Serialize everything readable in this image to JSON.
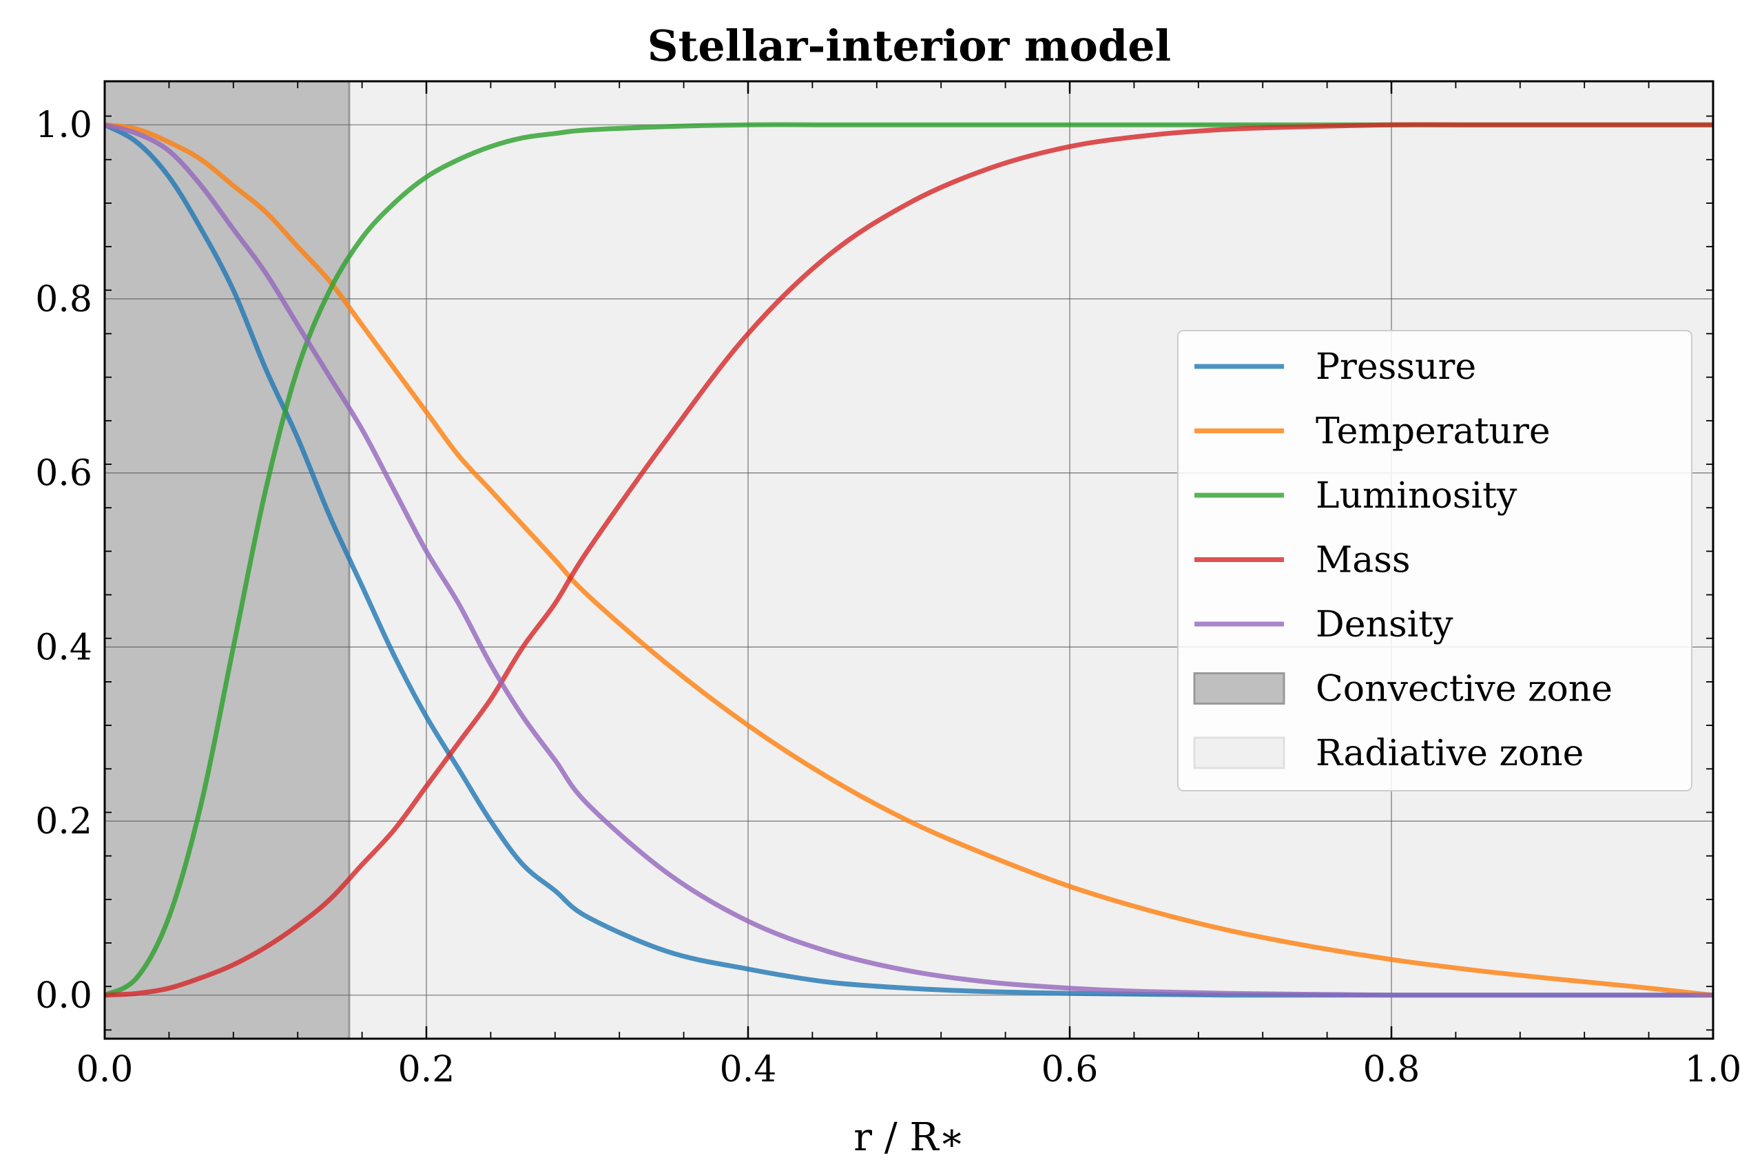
{
  "chart_data": {
    "type": "line",
    "title": "Stellar-interior model",
    "xlabel": "r / R∗",
    "ylabel": "",
    "xlim": [
      0.0,
      1.0
    ],
    "ylim": [
      -0.05,
      1.05
    ],
    "xticks": [
      "0.0",
      "0.2",
      "0.4",
      "0.6",
      "0.8",
      "1.0"
    ],
    "yticks": [
      "0.0",
      "0.2",
      "0.4",
      "0.6",
      "0.8",
      "1.0"
    ],
    "grid": true,
    "legend_position": "center-right",
    "x": [
      0.0,
      0.02,
      0.04,
      0.06,
      0.08,
      0.1,
      0.12,
      0.14,
      0.16,
      0.18,
      0.2,
      0.22,
      0.24,
      0.26,
      0.28,
      0.3,
      0.35,
      0.4,
      0.45,
      0.5,
      0.55,
      0.6,
      0.65,
      0.7,
      0.75,
      0.8,
      0.85,
      0.9,
      0.95,
      1.0
    ],
    "series": [
      {
        "name": "Pressure",
        "color": "#1f77b4",
        "values": [
          1.0,
          0.98,
          0.94,
          0.88,
          0.81,
          0.72,
          0.64,
          0.55,
          0.47,
          0.39,
          0.32,
          0.26,
          0.2,
          0.15,
          0.12,
          0.09,
          0.05,
          0.03,
          0.015,
          0.008,
          0.004,
          0.002,
          0.001,
          0.0,
          0.0,
          0.0,
          0.0,
          0.0,
          0.0,
          0.0
        ]
      },
      {
        "name": "Temperature",
        "color": "#ff7f0e",
        "values": [
          1.0,
          0.995,
          0.98,
          0.96,
          0.93,
          0.9,
          0.86,
          0.82,
          0.77,
          0.72,
          0.67,
          0.62,
          0.58,
          0.54,
          0.5,
          0.46,
          0.38,
          0.31,
          0.25,
          0.2,
          0.16,
          0.125,
          0.097,
          0.074,
          0.056,
          0.041,
          0.029,
          0.019,
          0.01,
          0.0
        ]
      },
      {
        "name": "Luminosity",
        "color": "#2ca02c",
        "values": [
          0.0,
          0.02,
          0.09,
          0.22,
          0.4,
          0.58,
          0.72,
          0.81,
          0.87,
          0.91,
          0.94,
          0.96,
          0.975,
          0.985,
          0.99,
          0.994,
          0.998,
          1.0,
          1.0,
          1.0,
          1.0,
          1.0,
          1.0,
          1.0,
          1.0,
          1.0,
          1.0,
          1.0,
          1.0,
          1.0
        ]
      },
      {
        "name": "Mass",
        "color": "#d62728",
        "values": [
          0.0,
          0.002,
          0.008,
          0.02,
          0.035,
          0.055,
          0.08,
          0.11,
          0.15,
          0.19,
          0.24,
          0.29,
          0.34,
          0.4,
          0.45,
          0.51,
          0.64,
          0.76,
          0.85,
          0.91,
          0.95,
          0.975,
          0.988,
          0.995,
          0.998,
          1.0,
          1.0,
          1.0,
          1.0,
          1.0
        ]
      },
      {
        "name": "Density",
        "color": "#9467bd",
        "values": [
          1.0,
          0.99,
          0.97,
          0.93,
          0.88,
          0.83,
          0.77,
          0.71,
          0.65,
          0.58,
          0.51,
          0.45,
          0.38,
          0.32,
          0.27,
          0.22,
          0.14,
          0.085,
          0.05,
          0.028,
          0.015,
          0.008,
          0.004,
          0.002,
          0.001,
          0.0,
          0.0,
          0.0,
          0.0,
          0.0
        ]
      }
    ],
    "regions": [
      {
        "name": "Convective zone",
        "x_start": 0.0,
        "x_end": 0.152,
        "color": "#bfbfbf"
      },
      {
        "name": "Radiative zone",
        "x_start": 0.152,
        "x_end": 1.0,
        "color": "#f0f0f0"
      }
    ]
  }
}
